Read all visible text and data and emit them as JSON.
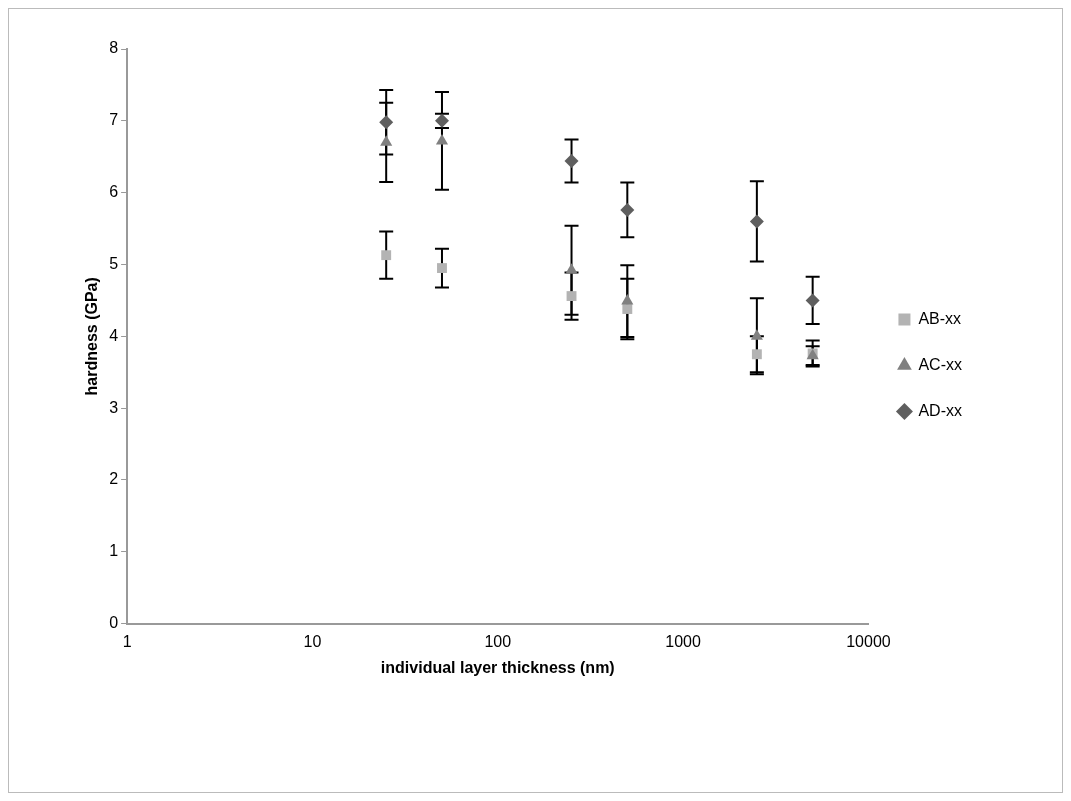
{
  "chart_data": {
    "type": "scatter",
    "xlabel": "individual layer thickness (nm)",
    "ylabel": "hardness (GPa)",
    "log": "x",
    "xlim": [
      1,
      10000
    ],
    "xticks": [
      1,
      10,
      100,
      1000,
      10000
    ],
    "ylim": [
      0,
      8
    ],
    "yticks": [
      0,
      1,
      2,
      3,
      4,
      5,
      6,
      7,
      8
    ],
    "grid": false,
    "legend": "right",
    "x": [
      25,
      50,
      250,
      500,
      2500,
      5000
    ],
    "series": [
      {
        "name": "AB-xx",
        "color": "#b3b3b3",
        "marker": "square",
        "values": [
          5.13,
          4.95,
          4.56,
          4.38,
          3.75,
          3.76
        ],
        "errors": [
          0.33,
          0.27,
          0.33,
          0.42,
          0.25,
          0.18
        ]
      },
      {
        "name": "AC-xx",
        "color": "#808080",
        "marker": "triangle",
        "values": [
          6.7,
          6.72,
          4.92,
          4.49,
          4.0,
          3.73
        ],
        "errors": [
          0.55,
          0.68,
          0.62,
          0.5,
          0.53,
          0.13
        ]
      },
      {
        "name": "AD-xx",
        "color": "#5f5f5f",
        "marker": "diamond",
        "values": [
          6.98,
          7.0,
          6.44,
          5.76,
          5.6,
          4.5
        ],
        "errors": [
          0.45,
          0.1,
          0.3,
          0.38,
          0.56,
          0.33
        ]
      }
    ]
  }
}
